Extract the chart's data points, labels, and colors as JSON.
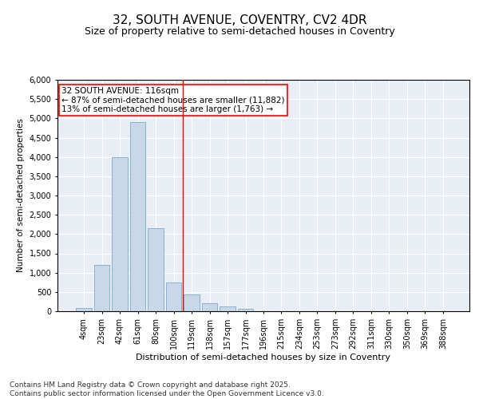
{
  "title_line1": "32, SOUTH AVENUE, COVENTRY, CV2 4DR",
  "title_line2": "Size of property relative to semi-detached houses in Coventry",
  "xlabel": "Distribution of semi-detached houses by size in Coventry",
  "ylabel": "Number of semi-detached properties",
  "categories": [
    "4sqm",
    "23sqm",
    "42sqm",
    "61sqm",
    "80sqm",
    "100sqm",
    "119sqm",
    "138sqm",
    "157sqm",
    "177sqm",
    "196sqm",
    "215sqm",
    "234sqm",
    "253sqm",
    "273sqm",
    "292sqm",
    "311sqm",
    "330sqm",
    "350sqm",
    "369sqm",
    "388sqm"
  ],
  "bar_heights": [
    80,
    1200,
    4000,
    4900,
    2150,
    750,
    430,
    210,
    120,
    60,
    0,
    0,
    0,
    0,
    0,
    0,
    0,
    0,
    0,
    0,
    0
  ],
  "bar_color": "#c8d8e8",
  "bar_edge_color": "#7aaac8",
  "vline_color": "red",
  "vline_idx": 6,
  "property_label": "32 SOUTH AVENUE: 116sqm",
  "annotation_line1": "← 87% of semi-detached houses are smaller (11,882)",
  "annotation_line2": "13% of semi-detached houses are larger (1,763) →",
  "ylim": [
    0,
    6000
  ],
  "yticks": [
    0,
    500,
    1000,
    1500,
    2000,
    2500,
    3000,
    3500,
    4000,
    4500,
    5000,
    5500,
    6000
  ],
  "background_color": "#e8eef4",
  "footer_line1": "Contains HM Land Registry data © Crown copyright and database right 2025.",
  "footer_line2": "Contains public sector information licensed under the Open Government Licence v3.0.",
  "title_fontsize": 11,
  "subtitle_fontsize": 9,
  "annotation_fontsize": 7.5,
  "footer_fontsize": 6.5,
  "ylabel_fontsize": 7.5,
  "xlabel_fontsize": 8,
  "tick_fontsize": 7
}
